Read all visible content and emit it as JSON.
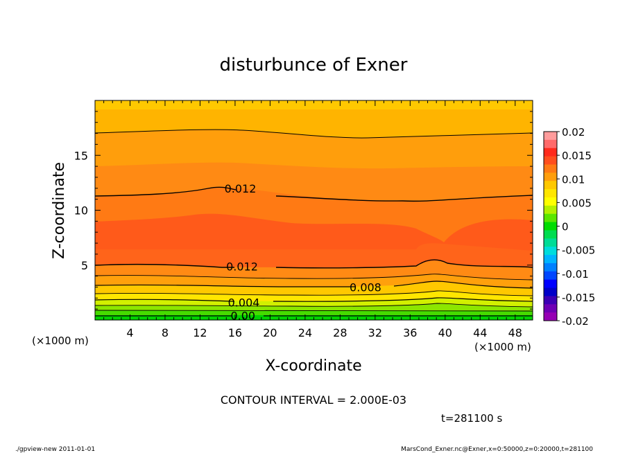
{
  "chart_data": {
    "type": "contour",
    "title": "disturbunce of Exner",
    "xlabel": "X-coordinate",
    "ylabel": "Z-coordinate",
    "x_unit_left": "(×1000 m)",
    "x_unit_right": "(×1000 m)",
    "xlim": [
      0,
      50
    ],
    "ylim": [
      0,
      20
    ],
    "x_ticks": [
      4,
      8,
      12,
      16,
      20,
      24,
      28,
      32,
      36,
      40,
      44,
      48
    ],
    "y_ticks": [
      5,
      10,
      15
    ],
    "colorbar": {
      "min": -0.02,
      "max": 0.02,
      "labels": [
        "0.02",
        "0.015",
        "0.01",
        "0.005",
        "0",
        "-0.005",
        "-0.01",
        "-0.015",
        "-0.02"
      ],
      "colors": [
        "#ff9c9c",
        "#ff6a6a",
        "#ff2a1c",
        "#ff4e1e",
        "#ff7a14",
        "#ff9e0c",
        "#ffc800",
        "#ffe600",
        "#ffff00",
        "#b4f000",
        "#5ae600",
        "#00dc00",
        "#00dc50",
        "#00dc96",
        "#00dcdc",
        "#00b4ff",
        "#0080ff",
        "#0046ff",
        "#0000ff",
        "#0000c8",
        "#3c00b4",
        "#6e00b4",
        "#9600b4"
      ]
    },
    "contour_labels": [
      {
        "text": "0.012",
        "x": 16.6,
        "z": 12.0
      },
      {
        "text": "0.012",
        "x": 16.8,
        "z": 4.9
      },
      {
        "text": "0.008",
        "x": 30.9,
        "z": 3.0
      },
      {
        "text": "0.004",
        "x": 17.0,
        "z": 1.6
      },
      {
        "text": "0.00",
        "x": 16.9,
        "z": 0.4
      }
    ],
    "contour_interval_text": "CONTOUR INTERVAL = 2.000E-03",
    "time_text": "t=281100 s"
  },
  "footer": {
    "left": "./gpview-new   2011-01-01",
    "right": "MarsCond_Exner.nc@Exner,x=0:50000,z=0:20000,t=281100"
  }
}
